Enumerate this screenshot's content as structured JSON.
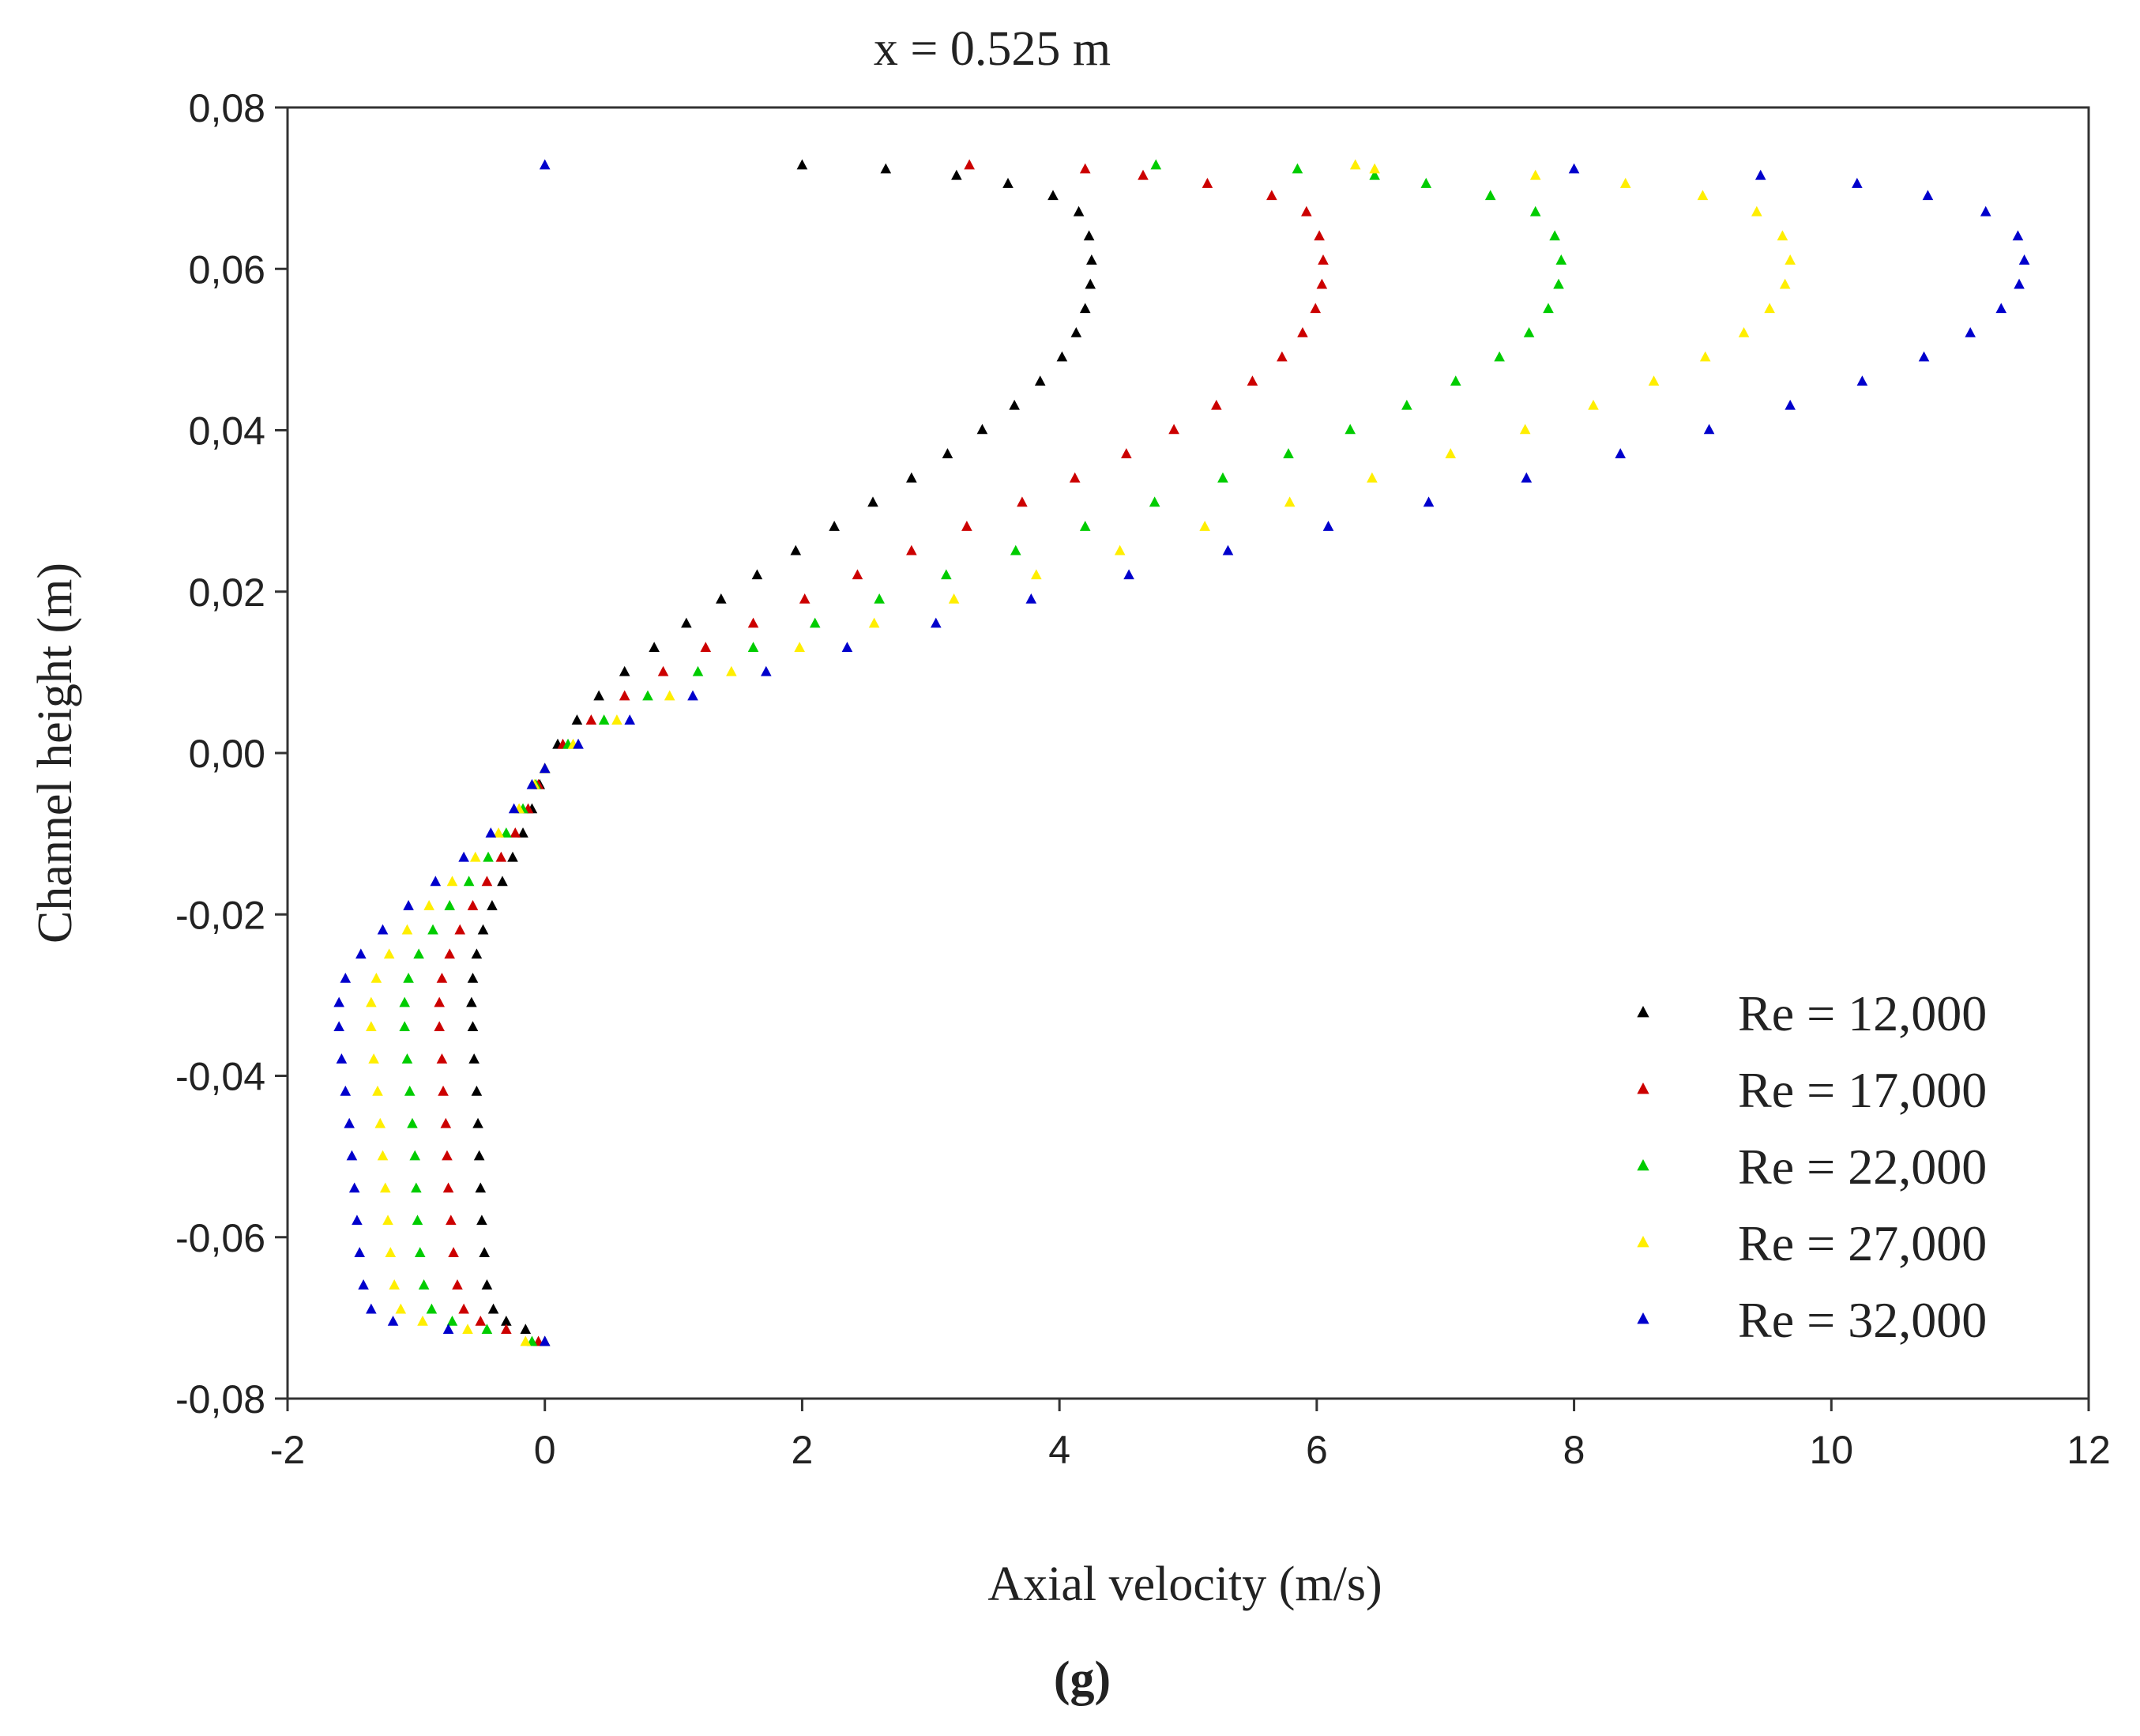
{
  "chart_data": {
    "type": "scatter",
    "title": "x = 0.525 m",
    "xlabel": "Axial velocity (m/s)",
    "ylabel": "Channel height (m)",
    "panel_label": "(g)",
    "xlim": [
      -2,
      12
    ],
    "ylim": [
      -0.08,
      0.08
    ],
    "xticks": [
      -2,
      0,
      2,
      4,
      6,
      8,
      10,
      12
    ],
    "yticks": [
      -0.08,
      -0.06,
      -0.04,
      -0.02,
      0.0,
      0.02,
      0.04,
      0.06,
      0.08
    ],
    "xtick_labels": [
      "-2",
      "0",
      "2",
      "4",
      "6",
      "8",
      "10",
      "12"
    ],
    "ytick_labels": [
      "-0,08",
      "-0,06",
      "-0,04",
      "-0,02",
      "0,00",
      "0,02",
      "0,04",
      "0,06",
      "0,08"
    ],
    "grid": false,
    "legend_position": "bottom-right",
    "marker": "triangle",
    "series": [
      {
        "name": "Re = 12,000",
        "color": "#000000",
        "points": [
          [
            0.0,
            -0.073
          ],
          [
            -0.15,
            -0.0715
          ],
          [
            -0.3,
            -0.0705
          ],
          [
            -0.4,
            -0.069
          ],
          [
            -0.45,
            -0.066
          ],
          [
            -0.47,
            -0.062
          ],
          [
            -0.49,
            -0.058
          ],
          [
            -0.5,
            -0.054
          ],
          [
            -0.51,
            -0.05
          ],
          [
            -0.52,
            -0.046
          ],
          [
            -0.53,
            -0.042
          ],
          [
            -0.55,
            -0.038
          ],
          [
            -0.56,
            -0.034
          ],
          [
            -0.57,
            -0.031
          ],
          [
            -0.56,
            -0.028
          ],
          [
            -0.53,
            -0.025
          ],
          [
            -0.48,
            -0.022
          ],
          [
            -0.41,
            -0.019
          ],
          [
            -0.33,
            -0.016
          ],
          [
            -0.25,
            -0.013
          ],
          [
            -0.17,
            -0.01
          ],
          [
            -0.1,
            -0.007
          ],
          [
            -0.04,
            -0.004
          ],
          [
            0.0,
            -0.002
          ],
          [
            0.1,
            0.001
          ],
          [
            0.25,
            0.004
          ],
          [
            0.42,
            0.007
          ],
          [
            0.62,
            0.01
          ],
          [
            0.85,
            0.013
          ],
          [
            1.1,
            0.016
          ],
          [
            1.37,
            0.019
          ],
          [
            1.65,
            0.022
          ],
          [
            1.95,
            0.025
          ],
          [
            2.25,
            0.028
          ],
          [
            2.55,
            0.031
          ],
          [
            2.85,
            0.034
          ],
          [
            3.13,
            0.037
          ],
          [
            3.4,
            0.04
          ],
          [
            3.65,
            0.043
          ],
          [
            3.85,
            0.046
          ],
          [
            4.02,
            0.049
          ],
          [
            4.13,
            0.052
          ],
          [
            4.2,
            0.055
          ],
          [
            4.24,
            0.058
          ],
          [
            4.25,
            0.061
          ],
          [
            4.23,
            0.064
          ],
          [
            4.15,
            0.067
          ],
          [
            3.95,
            0.069
          ],
          [
            3.6,
            0.0705
          ],
          [
            3.2,
            0.0715
          ],
          [
            2.65,
            0.0723
          ],
          [
            2.0,
            0.0728
          ]
        ]
      },
      {
        "name": "Re = 17,000",
        "color": "#cc0000",
        "points": [
          [
            -0.05,
            -0.073
          ],
          [
            -0.3,
            -0.0715
          ],
          [
            -0.5,
            -0.0705
          ],
          [
            -0.63,
            -0.069
          ],
          [
            -0.68,
            -0.066
          ],
          [
            -0.71,
            -0.062
          ],
          [
            -0.73,
            -0.058
          ],
          [
            -0.75,
            -0.054
          ],
          [
            -0.76,
            -0.05
          ],
          [
            -0.77,
            -0.046
          ],
          [
            -0.79,
            -0.042
          ],
          [
            -0.8,
            -0.038
          ],
          [
            -0.82,
            -0.034
          ],
          [
            -0.82,
            -0.031
          ],
          [
            -0.8,
            -0.028
          ],
          [
            -0.74,
            -0.025
          ],
          [
            -0.66,
            -0.022
          ],
          [
            -0.56,
            -0.019
          ],
          [
            -0.45,
            -0.016
          ],
          [
            -0.34,
            -0.013
          ],
          [
            -0.23,
            -0.01
          ],
          [
            -0.13,
            -0.007
          ],
          [
            -0.05,
            -0.004
          ],
          [
            0.0,
            -0.002
          ],
          [
            0.14,
            0.001
          ],
          [
            0.36,
            0.004
          ],
          [
            0.62,
            0.007
          ],
          [
            0.92,
            0.01
          ],
          [
            1.25,
            0.013
          ],
          [
            1.62,
            0.016
          ],
          [
            2.02,
            0.019
          ],
          [
            2.43,
            0.022
          ],
          [
            2.85,
            0.025
          ],
          [
            3.28,
            0.028
          ],
          [
            3.71,
            0.031
          ],
          [
            4.12,
            0.034
          ],
          [
            4.52,
            0.037
          ],
          [
            4.89,
            0.04
          ],
          [
            5.22,
            0.043
          ],
          [
            5.5,
            0.046
          ],
          [
            5.73,
            0.049
          ],
          [
            5.89,
            0.052
          ],
          [
            5.99,
            0.055
          ],
          [
            6.04,
            0.058
          ],
          [
            6.05,
            0.061
          ],
          [
            6.02,
            0.064
          ],
          [
            5.92,
            0.067
          ],
          [
            5.65,
            0.069
          ],
          [
            5.15,
            0.0705
          ],
          [
            4.65,
            0.0715
          ],
          [
            4.2,
            0.0723
          ],
          [
            3.3,
            0.0728
          ]
        ]
      },
      {
        "name": "Re = 22,000",
        "color": "#00cc00",
        "points": [
          [
            -0.1,
            -0.073
          ],
          [
            -0.45,
            -0.0715
          ],
          [
            -0.72,
            -0.0705
          ],
          [
            -0.88,
            -0.069
          ],
          [
            -0.94,
            -0.066
          ],
          [
            -0.97,
            -0.062
          ],
          [
            -0.99,
            -0.058
          ],
          [
            -1.0,
            -0.054
          ],
          [
            -1.01,
            -0.05
          ],
          [
            -1.03,
            -0.046
          ],
          [
            -1.05,
            -0.042
          ],
          [
            -1.07,
            -0.038
          ],
          [
            -1.09,
            -0.034
          ],
          [
            -1.09,
            -0.031
          ],
          [
            -1.06,
            -0.028
          ],
          [
            -0.98,
            -0.025
          ],
          [
            -0.87,
            -0.022
          ],
          [
            -0.74,
            -0.019
          ],
          [
            -0.59,
            -0.016
          ],
          [
            -0.44,
            -0.013
          ],
          [
            -0.3,
            -0.01
          ],
          [
            -0.17,
            -0.007
          ],
          [
            -0.07,
            -0.004
          ],
          [
            0.0,
            -0.002
          ],
          [
            0.18,
            0.001
          ],
          [
            0.46,
            0.004
          ],
          [
            0.8,
            0.007
          ],
          [
            1.19,
            0.01
          ],
          [
            1.62,
            0.013
          ],
          [
            2.1,
            0.016
          ],
          [
            2.6,
            0.019
          ],
          [
            3.12,
            0.022
          ],
          [
            3.66,
            0.025
          ],
          [
            4.2,
            0.028
          ],
          [
            4.74,
            0.031
          ],
          [
            5.27,
            0.034
          ],
          [
            5.78,
            0.037
          ],
          [
            6.26,
            0.04
          ],
          [
            6.7,
            0.043
          ],
          [
            7.08,
            0.046
          ],
          [
            7.42,
            0.049
          ],
          [
            7.65,
            0.052
          ],
          [
            7.8,
            0.055
          ],
          [
            7.88,
            0.058
          ],
          [
            7.9,
            0.061
          ],
          [
            7.85,
            0.064
          ],
          [
            7.7,
            0.067
          ],
          [
            7.35,
            0.069
          ],
          [
            6.85,
            0.0705
          ],
          [
            6.45,
            0.0715
          ],
          [
            5.85,
            0.0723
          ],
          [
            4.75,
            0.0728
          ]
        ]
      },
      {
        "name": "Re = 27,000",
        "color": "#ffee00",
        "points": [
          [
            -0.15,
            -0.073
          ],
          [
            -0.6,
            -0.0715
          ],
          [
            -0.95,
            -0.0705
          ],
          [
            -1.12,
            -0.069
          ],
          [
            -1.17,
            -0.066
          ],
          [
            -1.2,
            -0.062
          ],
          [
            -1.22,
            -0.058
          ],
          [
            -1.24,
            -0.054
          ],
          [
            -1.26,
            -0.05
          ],
          [
            -1.28,
            -0.046
          ],
          [
            -1.3,
            -0.042
          ],
          [
            -1.33,
            -0.038
          ],
          [
            -1.35,
            -0.034
          ],
          [
            -1.35,
            -0.031
          ],
          [
            -1.31,
            -0.028
          ],
          [
            -1.21,
            -0.025
          ],
          [
            -1.07,
            -0.022
          ],
          [
            -0.9,
            -0.019
          ],
          [
            -0.72,
            -0.016
          ],
          [
            -0.54,
            -0.013
          ],
          [
            -0.36,
            -0.01
          ],
          [
            -0.2,
            -0.007
          ],
          [
            -0.08,
            -0.004
          ],
          [
            0.0,
            -0.002
          ],
          [
            0.22,
            0.001
          ],
          [
            0.56,
            0.004
          ],
          [
            0.97,
            0.007
          ],
          [
            1.45,
            0.01
          ],
          [
            1.98,
            0.013
          ],
          [
            2.56,
            0.016
          ],
          [
            3.18,
            0.019
          ],
          [
            3.82,
            0.022
          ],
          [
            4.47,
            0.025
          ],
          [
            5.13,
            0.028
          ],
          [
            5.79,
            0.031
          ],
          [
            6.43,
            0.034
          ],
          [
            7.04,
            0.037
          ],
          [
            7.62,
            0.04
          ],
          [
            8.15,
            0.043
          ],
          [
            8.62,
            0.046
          ],
          [
            9.02,
            0.049
          ],
          [
            9.32,
            0.052
          ],
          [
            9.52,
            0.055
          ],
          [
            9.64,
            0.058
          ],
          [
            9.68,
            0.061
          ],
          [
            9.62,
            0.064
          ],
          [
            9.42,
            0.067
          ],
          [
            9.0,
            0.069
          ],
          [
            8.4,
            0.0705
          ],
          [
            7.7,
            0.0715
          ],
          [
            6.45,
            0.0723
          ],
          [
            6.3,
            0.0728
          ]
        ]
      },
      {
        "name": "Re = 32,000",
        "color": "#0000cc",
        "points": [
          [
            0.0,
            -0.073
          ],
          [
            -0.75,
            -0.0715
          ],
          [
            -1.18,
            -0.0705
          ],
          [
            -1.35,
            -0.069
          ],
          [
            -1.41,
            -0.066
          ],
          [
            -1.44,
            -0.062
          ],
          [
            -1.46,
            -0.058
          ],
          [
            -1.48,
            -0.054
          ],
          [
            -1.5,
            -0.05
          ],
          [
            -1.52,
            -0.046
          ],
          [
            -1.55,
            -0.042
          ],
          [
            -1.58,
            -0.038
          ],
          [
            -1.6,
            -0.034
          ],
          [
            -1.6,
            -0.031
          ],
          [
            -1.55,
            -0.028
          ],
          [
            -1.43,
            -0.025
          ],
          [
            -1.26,
            -0.022
          ],
          [
            -1.06,
            -0.019
          ],
          [
            -0.85,
            -0.016
          ],
          [
            -0.63,
            -0.013
          ],
          [
            -0.42,
            -0.01
          ],
          [
            -0.24,
            -0.007
          ],
          [
            -0.1,
            -0.004
          ],
          [
            0.0,
            -0.002
          ],
          [
            0.26,
            0.001
          ],
          [
            0.66,
            0.004
          ],
          [
            1.15,
            0.007
          ],
          [
            1.72,
            0.01
          ],
          [
            2.35,
            0.013
          ],
          [
            3.04,
            0.016
          ],
          [
            3.78,
            0.019
          ],
          [
            4.54,
            0.022
          ],
          [
            5.31,
            0.025
          ],
          [
            6.09,
            0.028
          ],
          [
            6.87,
            0.031
          ],
          [
            7.63,
            0.034
          ],
          [
            8.36,
            0.037
          ],
          [
            9.05,
            0.04
          ],
          [
            9.68,
            0.043
          ],
          [
            10.24,
            0.046
          ],
          [
            10.72,
            0.049
          ],
          [
            11.08,
            0.052
          ],
          [
            11.32,
            0.055
          ],
          [
            11.46,
            0.058
          ],
          [
            11.5,
            0.061
          ],
          [
            11.45,
            0.064
          ],
          [
            11.2,
            0.067
          ],
          [
            10.75,
            0.069
          ],
          [
            10.2,
            0.0705
          ],
          [
            9.45,
            0.0715
          ],
          [
            8.0,
            0.0723
          ],
          [
            0.0,
            0.0728
          ]
        ]
      }
    ]
  }
}
